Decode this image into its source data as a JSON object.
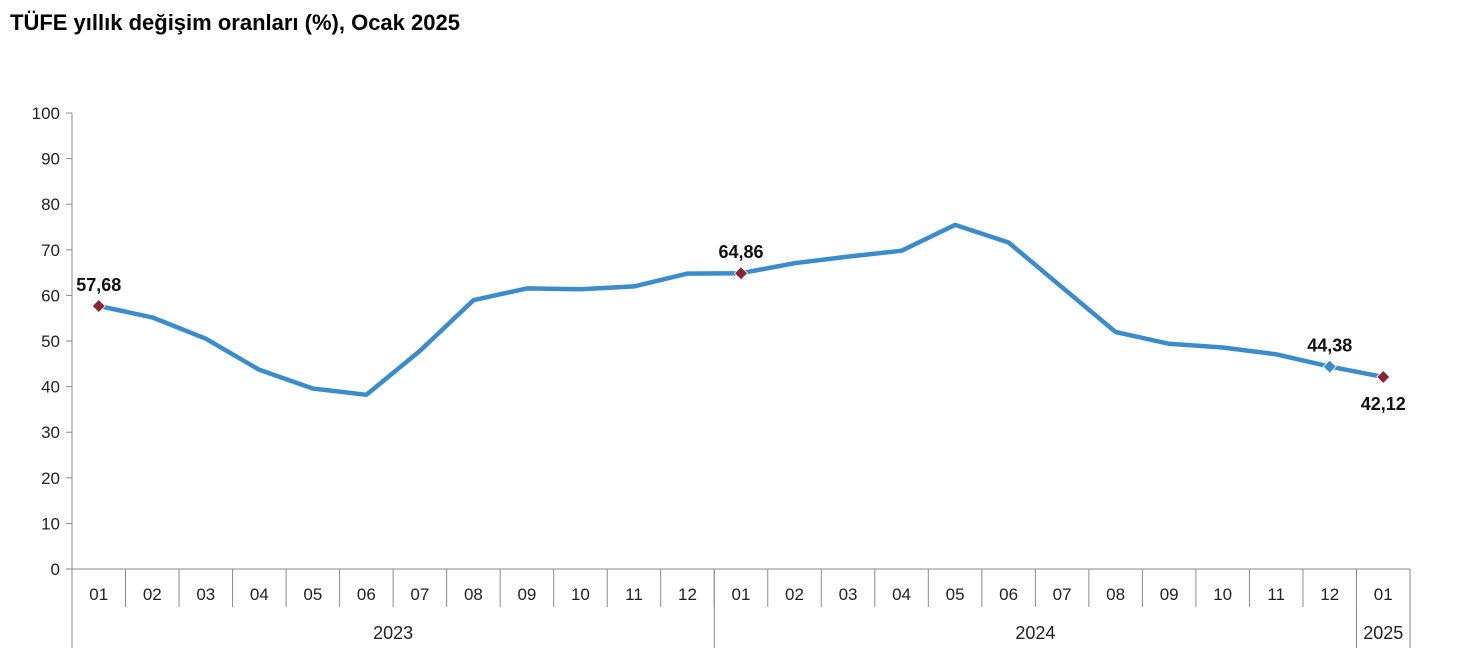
{
  "chart_data": {
    "type": "line",
    "title": "TÜFE yıllık değişim oranları (%), Ocak 2025",
    "xlabel": "",
    "ylabel": "",
    "ylim": [
      0,
      100
    ],
    "yticks": [
      "0",
      "10",
      "20",
      "30",
      "40",
      "50",
      "60",
      "70",
      "80",
      "90",
      "100"
    ],
    "grid": false,
    "categories": [
      "01",
      "02",
      "03",
      "04",
      "05",
      "06",
      "07",
      "08",
      "09",
      "10",
      "11",
      "12",
      "01",
      "02",
      "03",
      "04",
      "05",
      "06",
      "07",
      "08",
      "09",
      "10",
      "11",
      "12",
      "01"
    ],
    "year_groups": [
      {
        "label": "2023",
        "count": 12
      },
      {
        "label": "2024",
        "count": 12
      },
      {
        "label": "2025",
        "count": 1
      }
    ],
    "series": [
      {
        "color": "#3a8ccd",
        "values": [
          57.68,
          55.18,
          50.51,
          43.68,
          39.59,
          38.21,
          47.83,
          58.94,
          61.53,
          61.36,
          61.98,
          64.77,
          64.86,
          67.07,
          68.5,
          69.8,
          75.45,
          71.6,
          61.78,
          51.97,
          49.38,
          48.58,
          47.09,
          44.38,
          42.12
        ]
      }
    ],
    "highlights": [
      {
        "index": 0,
        "label": "57,68",
        "marker_color": "#8b2331",
        "position": "above"
      },
      {
        "index": 12,
        "label": "64,86",
        "marker_color": "#8b2331",
        "position": "above"
      },
      {
        "index": 23,
        "label": "44,38",
        "marker_color": "#3a8ccd",
        "position": "above"
      },
      {
        "index": 24,
        "label": "42,12",
        "marker_color": "#8b2331",
        "position": "below"
      }
    ]
  }
}
